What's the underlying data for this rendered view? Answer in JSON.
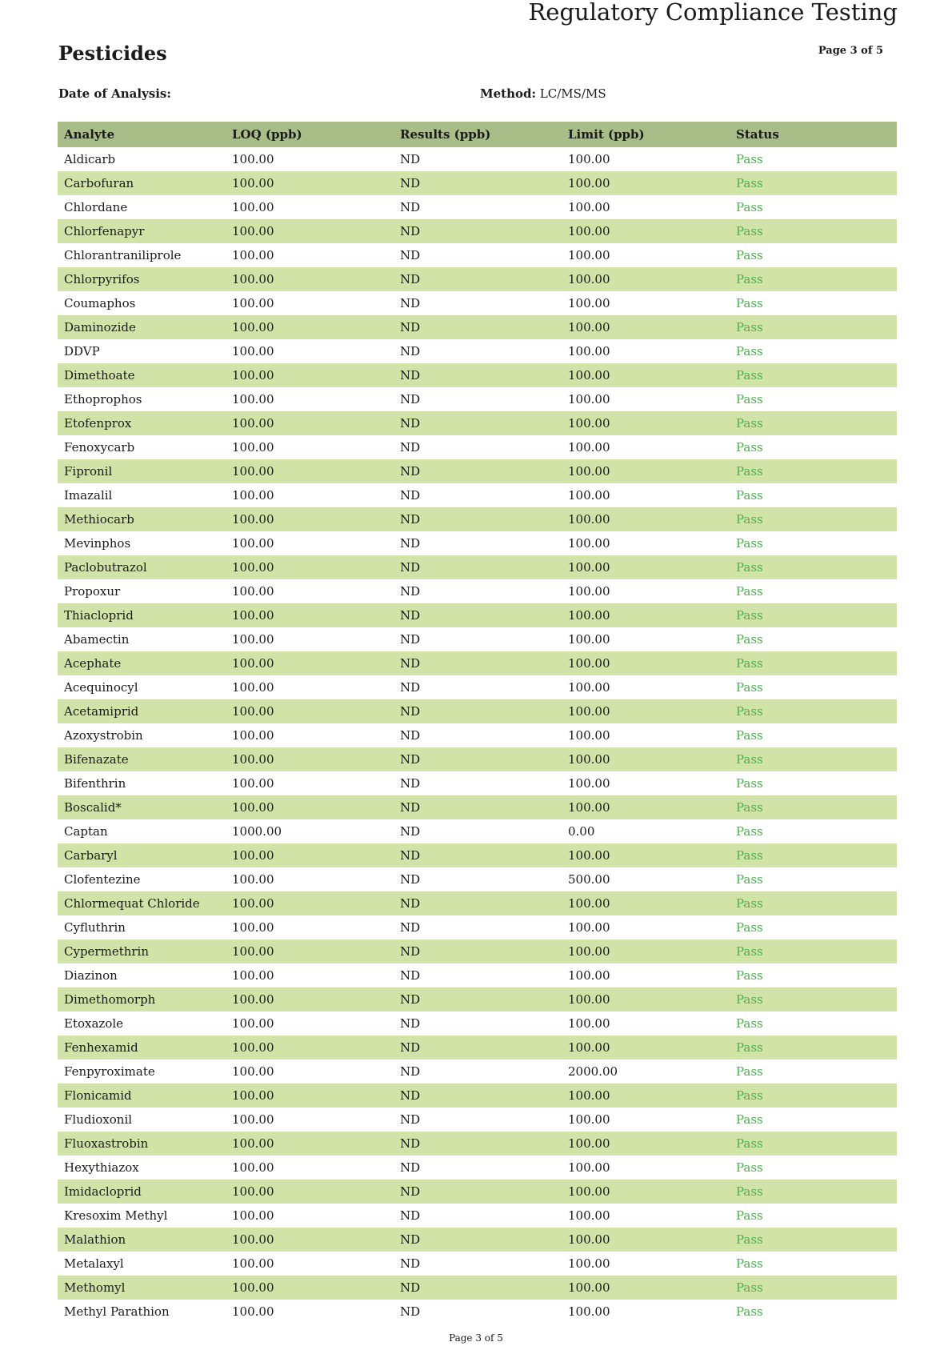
{
  "header": {
    "title": "Regulatory Compliance Testing",
    "section": "Pesticides",
    "page": "Page 3 of 5"
  },
  "meta": {
    "date_label": "Date of Analysis:",
    "date_value": "",
    "method_label": "Method:",
    "method_value": "LC/MS/MS"
  },
  "colors": {
    "header_bg": "#a9bd88",
    "stripe_bg": "#d2e3a8",
    "pass": "#4caf50"
  },
  "table": {
    "columns": [
      "Analyte",
      "LOQ (ppb)",
      "Results (ppb)",
      "Limit (ppb)",
      "Status"
    ],
    "rows": [
      [
        "Aldicarb",
        "100.00",
        "ND",
        "100.00",
        "Pass"
      ],
      [
        "Carbofuran",
        "100.00",
        "ND",
        "100.00",
        "Pass"
      ],
      [
        "Chlordane",
        "100.00",
        "ND",
        "100.00",
        "Pass"
      ],
      [
        "Chlorfenapyr",
        "100.00",
        "ND",
        "100.00",
        "Pass"
      ],
      [
        "Chlorantraniliprole",
        "100.00",
        "ND",
        "100.00",
        "Pass"
      ],
      [
        "Chlorpyrifos",
        "100.00",
        "ND",
        "100.00",
        "Pass"
      ],
      [
        "Coumaphos",
        "100.00",
        "ND",
        "100.00",
        "Pass"
      ],
      [
        "Daminozide",
        "100.00",
        "ND",
        "100.00",
        "Pass"
      ],
      [
        "DDVP",
        "100.00",
        "ND",
        "100.00",
        "Pass"
      ],
      [
        "Dimethoate",
        "100.00",
        "ND",
        "100.00",
        "Pass"
      ],
      [
        "Ethoprophos",
        "100.00",
        "ND",
        "100.00",
        "Pass"
      ],
      [
        "Etofenprox",
        "100.00",
        "ND",
        "100.00",
        "Pass"
      ],
      [
        "Fenoxycarb",
        "100.00",
        "ND",
        "100.00",
        "Pass"
      ],
      [
        "Fipronil",
        "100.00",
        "ND",
        "100.00",
        "Pass"
      ],
      [
        "Imazalil",
        "100.00",
        "ND",
        "100.00",
        "Pass"
      ],
      [
        "Methiocarb",
        "100.00",
        "ND",
        "100.00",
        "Pass"
      ],
      [
        "Mevinphos",
        "100.00",
        "ND",
        "100.00",
        "Pass"
      ],
      [
        "Paclobutrazol",
        "100.00",
        "ND",
        "100.00",
        "Pass"
      ],
      [
        "Propoxur",
        "100.00",
        "ND",
        "100.00",
        "Pass"
      ],
      [
        "Thiacloprid",
        "100.00",
        "ND",
        "100.00",
        "Pass"
      ],
      [
        "Abamectin",
        "100.00",
        "ND",
        "100.00",
        "Pass"
      ],
      [
        "Acephate",
        "100.00",
        "ND",
        "100.00",
        "Pass"
      ],
      [
        "Acequinocyl",
        "100.00",
        "ND",
        "100.00",
        "Pass"
      ],
      [
        "Acetamiprid",
        "100.00",
        "ND",
        "100.00",
        "Pass"
      ],
      [
        "Azoxystrobin",
        "100.00",
        "ND",
        "100.00",
        "Pass"
      ],
      [
        "Bifenazate",
        "100.00",
        "ND",
        "100.00",
        "Pass"
      ],
      [
        "Bifenthrin",
        "100.00",
        "ND",
        "100.00",
        "Pass"
      ],
      [
        "Boscalid*",
        "100.00",
        "ND",
        "100.00",
        "Pass"
      ],
      [
        "Captan",
        "1000.00",
        "ND",
        "0.00",
        "Pass"
      ],
      [
        "Carbaryl",
        "100.00",
        "ND",
        "100.00",
        "Pass"
      ],
      [
        "Clofentezine",
        "100.00",
        "ND",
        "500.00",
        "Pass"
      ],
      [
        "Chlormequat Chloride",
        "100.00",
        "ND",
        "100.00",
        "Pass"
      ],
      [
        "Cyfluthrin",
        "100.00",
        "ND",
        "100.00",
        "Pass"
      ],
      [
        "Cypermethrin",
        "100.00",
        "ND",
        "100.00",
        "Pass"
      ],
      [
        "Diazinon",
        "100.00",
        "ND",
        "100.00",
        "Pass"
      ],
      [
        "Dimethomorph",
        "100.00",
        "ND",
        "100.00",
        "Pass"
      ],
      [
        "Etoxazole",
        "100.00",
        "ND",
        "100.00",
        "Pass"
      ],
      [
        "Fenhexamid",
        "100.00",
        "ND",
        "100.00",
        "Pass"
      ],
      [
        "Fenpyroximate",
        "100.00",
        "ND",
        "2000.00",
        "Pass"
      ],
      [
        "Flonicamid",
        "100.00",
        "ND",
        "100.00",
        "Pass"
      ],
      [
        "Fludioxonil",
        "100.00",
        "ND",
        "100.00",
        "Pass"
      ],
      [
        "Fluoxastrobin",
        "100.00",
        "ND",
        "100.00",
        "Pass"
      ],
      [
        "Hexythiazox",
        "100.00",
        "ND",
        "100.00",
        "Pass"
      ],
      [
        "Imidacloprid",
        "100.00",
        "ND",
        "100.00",
        "Pass"
      ],
      [
        "Kresoxim Methyl",
        "100.00",
        "ND",
        "100.00",
        "Pass"
      ],
      [
        "Malathion",
        "100.00",
        "ND",
        "100.00",
        "Pass"
      ],
      [
        "Metalaxyl",
        "100.00",
        "ND",
        "100.00",
        "Pass"
      ],
      [
        "Methomyl",
        "100.00",
        "ND",
        "100.00",
        "Pass"
      ],
      [
        "Methyl Parathion",
        "100.00",
        "ND",
        "100.00",
        "Pass"
      ]
    ]
  },
  "footer": {
    "page": "Page 3 of 5"
  }
}
